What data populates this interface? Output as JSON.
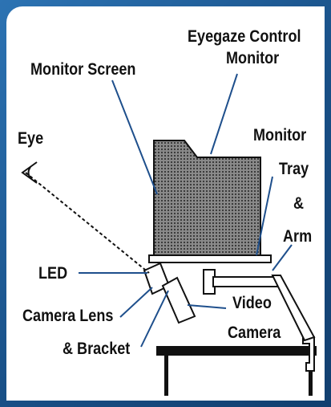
{
  "labels": {
    "eye": "Eye",
    "monitor_screen": "Monitor Screen",
    "eyegaze_line1": "Eyegaze Control",
    "eyegaze_line2": "Monitor",
    "tray_line1": "Monitor",
    "tray_line2": "Tray",
    "tray_line3": "&",
    "tray_line4": "Arm",
    "led": "LED",
    "camera_lens": "Camera Lens",
    "bracket": "& Bracket",
    "video_line1": "Video",
    "video_line2": "Camera"
  },
  "colors": {
    "frame": "#1d5a93",
    "panel": "#ffffff",
    "line": "#1e4f8c",
    "ink": "#111111",
    "monitor_fill": "#7a7a7a"
  }
}
